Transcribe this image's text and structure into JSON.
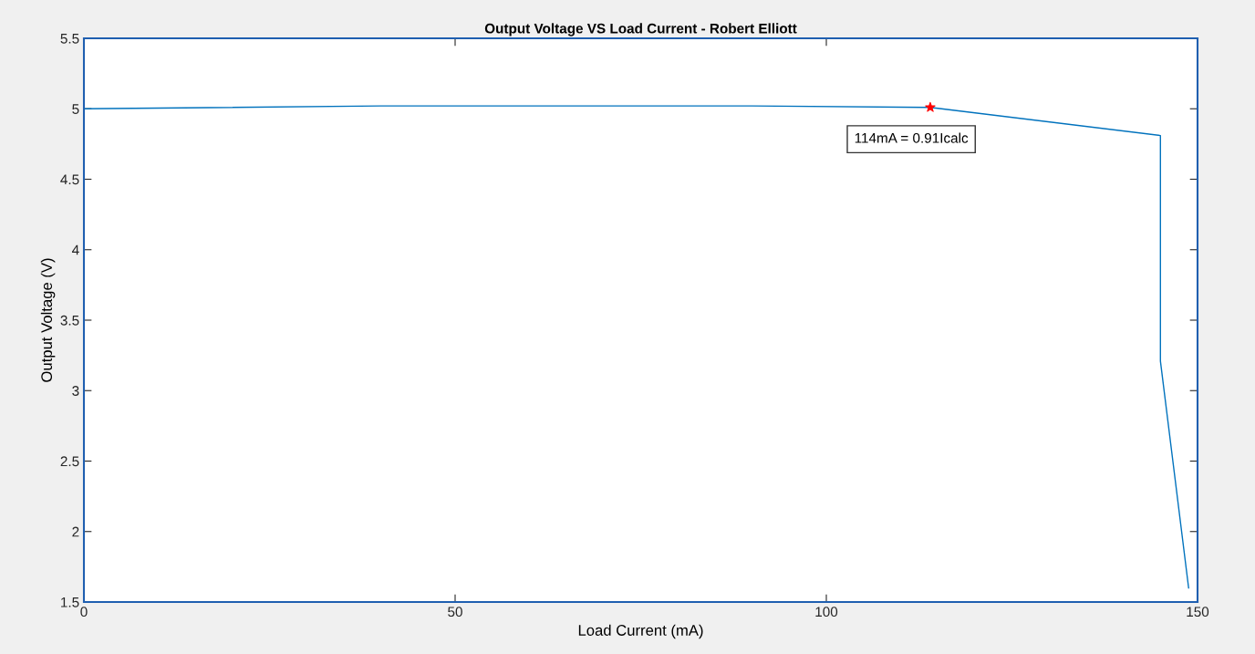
{
  "chart_data": {
    "type": "line",
    "title": "Output Voltage VS Load Current - Robert Elliott",
    "xlabel": "Load Current (mA)",
    "ylabel": "Output Voltage (V)",
    "series": [
      {
        "color": "#0072bd",
        "x": [
          0,
          40,
          90,
          114,
          145,
          145,
          148.8
        ],
        "values": [
          5.0,
          5.02,
          5.02,
          5.01,
          4.81,
          3.21,
          1.6
        ]
      },
      {
        "type": "scatter",
        "marker": "star",
        "color": "#ff0000",
        "x": [
          114
        ],
        "values": [
          5.01
        ]
      }
    ],
    "annotations": [
      {
        "text": "114mA = 0.91Icalc",
        "x": 114,
        "y": 5.01
      }
    ],
    "xlim": [
      0,
      150
    ],
    "xticks": [
      0,
      50,
      100,
      150
    ],
    "ylim": [
      1.5,
      5.5
    ],
    "yticks": [
      1.5,
      2,
      2.5,
      3,
      3.5,
      4,
      4.5,
      5,
      5.5
    ],
    "grid": false,
    "legend": false
  }
}
